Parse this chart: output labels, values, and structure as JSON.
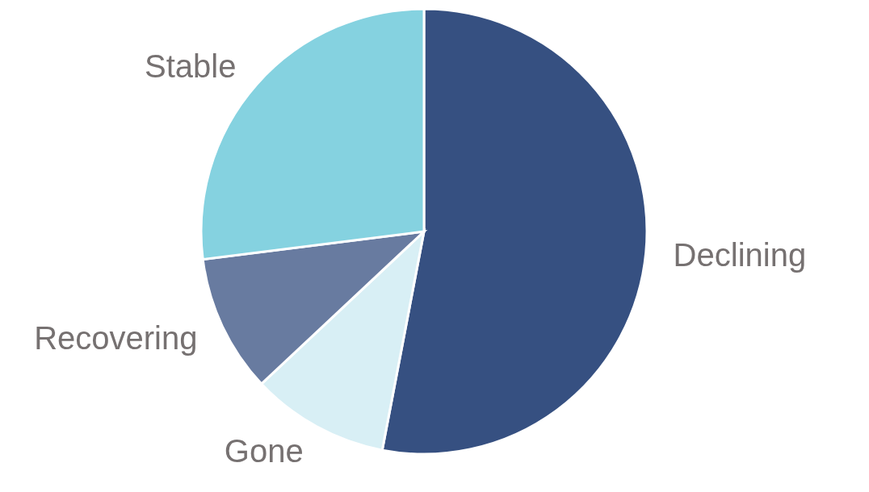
{
  "chart_data": {
    "type": "pie",
    "categories": [
      "Declining",
      "Gone",
      "Recovering",
      "Stable"
    ],
    "values": [
      53,
      10,
      10,
      27
    ],
    "colors": [
      "#365081",
      "#d8eff5",
      "#687ba0",
      "#85d2e0"
    ],
    "legend": false
  }
}
